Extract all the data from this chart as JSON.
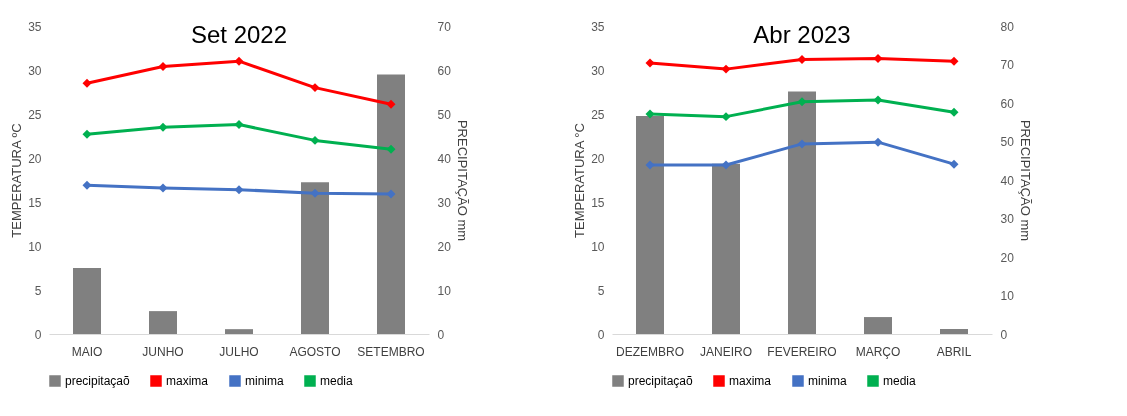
{
  "chart_data": [
    {
      "type": "line",
      "title": "Set 2022",
      "ylabel": "TEMPERATURA ºC",
      "y2label": "PRECIPITAÇÃO mm",
      "categories": [
        "MAIO",
        "JUNHO",
        "JULHO",
        "AGOSTO",
        "SETEMBRO"
      ],
      "ylim": [
        0,
        35
      ],
      "yticks": [
        0,
        5,
        10,
        15,
        20,
        25,
        30,
        35
      ],
      "y2lim": [
        0,
        70
      ],
      "y2ticks": [
        0,
        10,
        20,
        30,
        40,
        50,
        60,
        70
      ],
      "legend": "bottom",
      "marker": "diamond",
      "series": [
        {
          "name": "precipitaçaõ",
          "type": "bar",
          "axis": "y2",
          "color": "#808080",
          "values": [
            15,
            5.2,
            1.1,
            34.5,
            59
          ]
        },
        {
          "name": "maxima",
          "color": "#ff0000",
          "values": [
            28.5,
            30.4,
            31,
            28,
            26.1
          ]
        },
        {
          "name": "minima",
          "color": "#4472c4",
          "values": [
            16.9,
            16.6,
            16.4,
            16,
            15.9
          ]
        },
        {
          "name": "media",
          "color": "#00b050",
          "values": [
            22.7,
            23.5,
            23.8,
            22,
            21
          ]
        }
      ]
    },
    {
      "type": "line",
      "title": "Abr 2023",
      "ylabel": "TEMPERATURA °C",
      "y2label": "PRECIPITAÇÃO mm",
      "categories": [
        "DEZEMBRO",
        "JANEIRO",
        "FEVEREIRO",
        "MARÇO",
        "ABRIL"
      ],
      "ylim": [
        0,
        35
      ],
      "yticks": [
        0,
        5,
        10,
        15,
        20,
        25,
        30,
        35
      ],
      "y2lim": [
        0,
        80
      ],
      "y2ticks": [
        0,
        10,
        20,
        30,
        40,
        50,
        60,
        70,
        80
      ],
      "legend": "bottom",
      "marker": "diamond",
      "series": [
        {
          "name": "precipitaçaõ",
          "type": "bar",
          "axis": "y2",
          "color": "#808080",
          "values": [
            56.6,
            44.2,
            63,
            4.4,
            1.3
          ]
        },
        {
          "name": "maxima",
          "color": "#ff0000",
          "values": [
            30.8,
            30.1,
            31.2,
            31.3,
            31
          ]
        },
        {
          "name": "minima",
          "color": "#4472c4",
          "values": [
            19.2,
            19.2,
            21.6,
            21.8,
            19.3
          ]
        },
        {
          "name": "media",
          "color": "#00b050",
          "values": [
            25,
            24.7,
            26.4,
            26.6,
            25.2
          ]
        }
      ]
    }
  ]
}
